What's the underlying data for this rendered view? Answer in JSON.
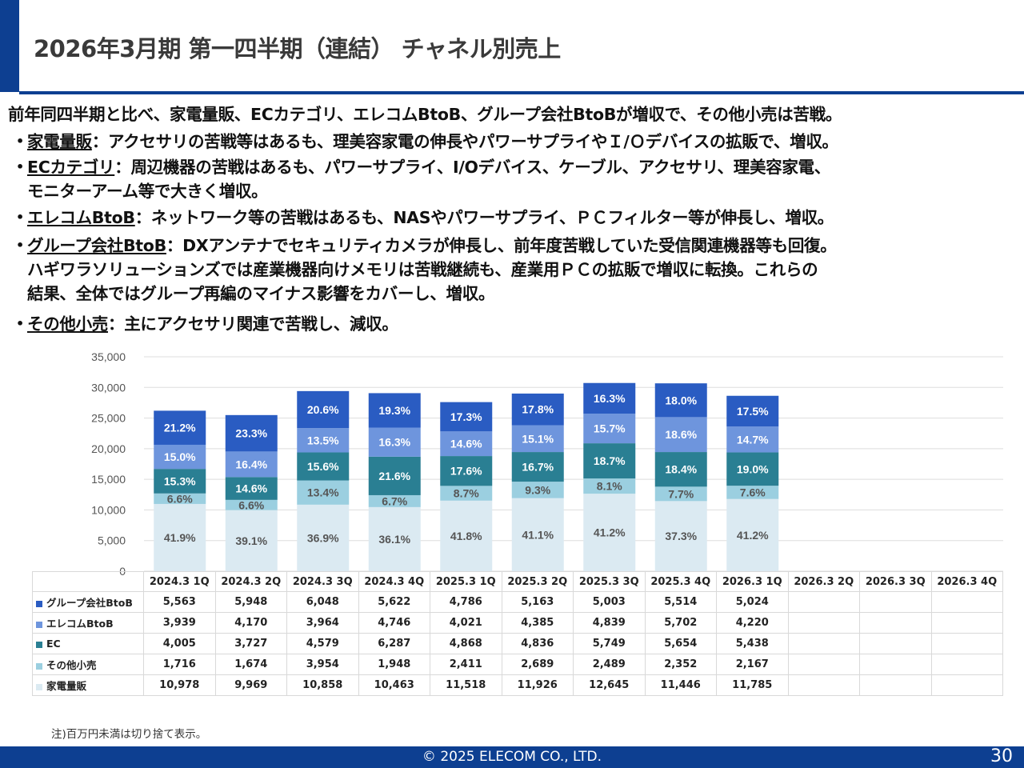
{
  "title": "2026年3月期 第一四半期（連結） チャネル別売上",
  "summary": "前年同四半期と比べ、家電量販、ECカテゴリ、エレコムBtoB、グループ会社BtoBが増収で、その他小売は苦戦。",
  "bullets": [
    {
      "label": "家電量販",
      "text": "：アクセサリの苦戦等はあるも、理美容家電の伸長やパワーサプライやＩ/Ｏデバイスの拡販で、増収。"
    },
    {
      "label": "ECカテゴリ",
      "text": "：周辺機器の苦戦はあるも、パワーサプライ、I/Oデバイス、ケーブル、アクセサリ、理美容家電、\nモニターアーム等で大きく増収。"
    },
    {
      "label": "エレコムBtoB",
      "text": "：ネットワーク等の苦戦はあるも、NASやパワーサプライ、ＰＣフィルター等が伸長し、増収。"
    },
    {
      "label": "グループ会社BtoB",
      "text": "：DXアンテナでセキュリティカメラが伸長し、前年度苦戦していた受信関連機器等も回復。\nハギワラソリューションズでは産業機器向けメモリは苦戦継続も、産業用ＰＣの拡販で増収に転換。これらの\n結果、全体ではグループ再編のマイナス影響をカバーし、増収。"
    },
    {
      "label": "その他小売",
      "text": "：主にアクセサリ関連で苦戦し、減収。"
    }
  ],
  "note": "注)百万円未満は切り捨て表示。",
  "footer": {
    "copyright": "© 2025 ELECOM CO., LTD.",
    "page": "30"
  },
  "chart_data": {
    "type": "bar",
    "stacked": true,
    "categories": [
      "2024.3 1Q",
      "2024.3 2Q",
      "2024.3 3Q",
      "2024.3 4Q",
      "2025.3 1Q",
      "2025.3 2Q",
      "2025.3 3Q",
      "2025.3 4Q",
      "2026.3 1Q",
      "2026.3 2Q",
      "2026.3 3Q",
      "2026.3 4Q"
    ],
    "ylim": [
      0,
      35000
    ],
    "yticks": [
      "0",
      "5,000",
      "10,000",
      "15,000",
      "20,000",
      "25,000",
      "30,000",
      "35,000"
    ],
    "grid": true,
    "series": [
      {
        "name": "家電量販",
        "color": "#dbeaf2",
        "values": [
          10978,
          9969,
          10858,
          10463,
          11518,
          11926,
          12645,
          11446,
          11785,
          null,
          null,
          null
        ],
        "labels": [
          "10,978",
          "9,969",
          "10,858",
          "10,463",
          "11,518",
          "11,926",
          "12,645",
          "11,446",
          "11,785",
          "",
          "",
          ""
        ],
        "pct": [
          "41.9%",
          "39.1%",
          "36.9%",
          "36.1%",
          "41.8%",
          "41.1%",
          "41.2%",
          "37.3%",
          "41.2%"
        ]
      },
      {
        "name": "その他小売",
        "color": "#9bcfe0",
        "values": [
          1716,
          1674,
          3954,
          1948,
          2411,
          2689,
          2489,
          2352,
          2167,
          null,
          null,
          null
        ],
        "labels": [
          "1,716",
          "1,674",
          "3,954",
          "1,948",
          "2,411",
          "2,689",
          "2,489",
          "2,352",
          "2,167",
          "",
          "",
          ""
        ],
        "pct": [
          "6.6%",
          "6.6%",
          "13.4%",
          "6.7%",
          "8.7%",
          "9.3%",
          "8.1%",
          "7.7%",
          "7.6%"
        ]
      },
      {
        "name": "EC",
        "color": "#2a7f93",
        "values": [
          4005,
          3727,
          4579,
          6287,
          4868,
          4836,
          5749,
          5654,
          5438,
          null,
          null,
          null
        ],
        "labels": [
          "4,005",
          "3,727",
          "4,579",
          "6,287",
          "4,868",
          "4,836",
          "5,749",
          "5,654",
          "5,438",
          "",
          "",
          ""
        ],
        "pct": [
          "15.3%",
          "14.6%",
          "15.6%",
          "21.6%",
          "17.6%",
          "16.7%",
          "18.7%",
          "18.4%",
          "19.0%"
        ]
      },
      {
        "name": "エレコムBtoB",
        "color": "#6e95dd",
        "values": [
          3939,
          4170,
          3964,
          4746,
          4021,
          4385,
          4839,
          5702,
          4220,
          null,
          null,
          null
        ],
        "labels": [
          "3,939",
          "4,170",
          "3,964",
          "4,746",
          "4,021",
          "4,385",
          "4,839",
          "5,702",
          "4,220",
          "",
          "",
          ""
        ],
        "pct": [
          "15.0%",
          "16.4%",
          "13.5%",
          "16.3%",
          "14.6%",
          "15.1%",
          "15.7%",
          "18.6%",
          "14.7%"
        ]
      },
      {
        "name": "グループ会社BtoB",
        "color": "#2a5cc2",
        "values": [
          5563,
          5948,
          6048,
          5622,
          4786,
          5163,
          5003,
          5514,
          5024,
          null,
          null,
          null
        ],
        "labels": [
          "5,563",
          "5,948",
          "6,048",
          "5,622",
          "4,786",
          "5,163",
          "5,003",
          "5,514",
          "5,024",
          "",
          "",
          ""
        ],
        "pct": [
          "21.2%",
          "23.3%",
          "20.6%",
          "19.3%",
          "17.3%",
          "17.8%",
          "16.3%",
          "18.0%",
          "17.5%"
        ]
      }
    ],
    "table_row_order": [
      "グループ会社BtoB",
      "エレコムBtoB",
      "EC",
      "その他小売",
      "家電量販"
    ]
  }
}
